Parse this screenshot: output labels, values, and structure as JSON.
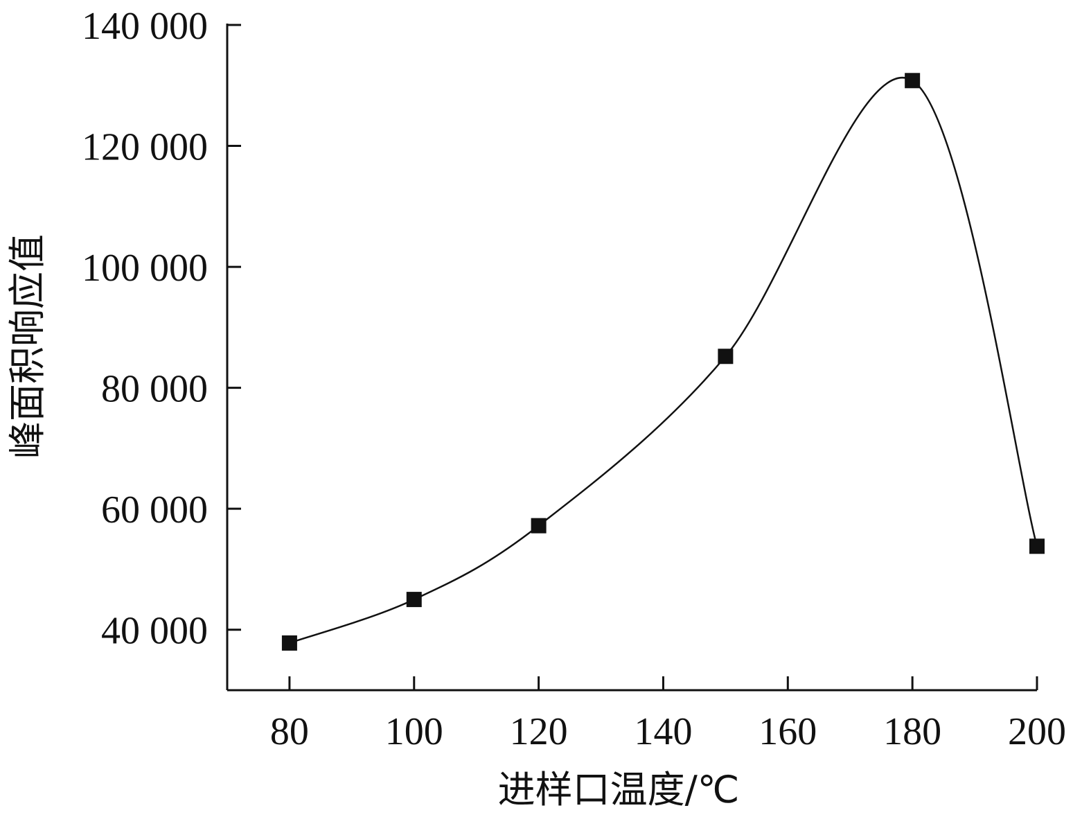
{
  "chart_data": {
    "type": "line",
    "title": "",
    "xlabel": "进样口温度/℃",
    "ylabel": "峰面积响应值",
    "x_ticks": [
      80,
      100,
      120,
      140,
      160,
      180,
      200
    ],
    "x_tick_labels": [
      "80",
      "100",
      "120",
      "140",
      "160",
      "180",
      "200"
    ],
    "y_ticks": [
      40000,
      60000,
      80000,
      100000,
      120000,
      140000
    ],
    "y_tick_labels": [
      "40 000",
      "60 000",
      "80 000",
      "100 000",
      "120 000",
      "140 000"
    ],
    "xlim": [
      70,
      200
    ],
    "ylim": [
      30000,
      140000
    ],
    "grid": false,
    "legend": "none",
    "smooth": true,
    "marker": "square",
    "color": "#111111",
    "series": [
      {
        "x": [
          80,
          100,
          120,
          150,
          180,
          200
        ],
        "y": [
          37800,
          45000,
          57200,
          85200,
          130800,
          53800
        ]
      }
    ]
  }
}
